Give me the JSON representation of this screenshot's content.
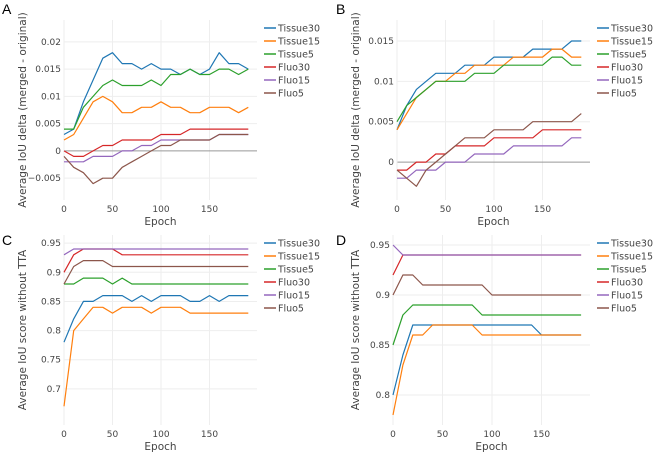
{
  "chart_data": [
    {
      "panel": "A",
      "type": "line",
      "xlabel": "Epoch",
      "ylabel": "Average IoU delta (merged - original)",
      "xlim": [
        0,
        199
      ],
      "ylim": [
        -0.009,
        0.024
      ],
      "xticks": [
        0,
        50,
        100,
        150
      ],
      "xtick_labels": [
        "0",
        "50",
        "100",
        "150"
      ],
      "yticks": [
        -0.005,
        0,
        0.005,
        0.01,
        0.015,
        0.02
      ],
      "ytick_labels": [
        "−0.005",
        "0",
        "0.005",
        "0.01",
        "0.015",
        "0.02"
      ],
      "zero_line": true,
      "grid": true,
      "legend": "top-right-outside",
      "x": [
        0,
        10,
        20,
        30,
        40,
        50,
        60,
        70,
        80,
        90,
        100,
        110,
        120,
        130,
        140,
        150,
        160,
        170,
        180,
        190
      ],
      "series": [
        {
          "name": "Tissue30",
          "color": "#1f77b4",
          "values": [
            0.003,
            0.004,
            0.009,
            0.013,
            0.017,
            0.018,
            0.016,
            0.016,
            0.015,
            0.016,
            0.015,
            0.015,
            0.014,
            0.015,
            0.014,
            0.015,
            0.018,
            0.016,
            0.016,
            0.015
          ]
        },
        {
          "name": "Tissue15",
          "color": "#ff7f0e",
          "values": [
            0.002,
            0.003,
            0.006,
            0.009,
            0.01,
            0.009,
            0.007,
            0.007,
            0.008,
            0.008,
            0.009,
            0.008,
            0.008,
            0.007,
            0.007,
            0.008,
            0.008,
            0.008,
            0.007,
            0.008
          ]
        },
        {
          "name": "Tissue5",
          "color": "#2ca02c",
          "values": [
            0.004,
            0.004,
            0.008,
            0.01,
            0.012,
            0.013,
            0.012,
            0.012,
            0.012,
            0.013,
            0.012,
            0.014,
            0.014,
            0.015,
            0.014,
            0.014,
            0.015,
            0.015,
            0.014,
            0.015
          ]
        },
        {
          "name": "Fluo30",
          "color": "#d62728",
          "values": [
            0.0,
            -0.001,
            -0.001,
            0.0,
            0.001,
            0.001,
            0.002,
            0.002,
            0.002,
            0.002,
            0.003,
            0.003,
            0.003,
            0.004,
            0.004,
            0.004,
            0.004,
            0.004,
            0.004,
            0.004
          ]
        },
        {
          "name": "Fluo15",
          "color": "#9467bd",
          "values": [
            -0.002,
            -0.002,
            -0.002,
            -0.001,
            -0.001,
            -0.001,
            0.0,
            0.0,
            0.001,
            0.001,
            0.002,
            0.002,
            0.002,
            0.002,
            0.002,
            0.002,
            0.003,
            0.003,
            0.003,
            0.003
          ]
        },
        {
          "name": "Fluo5",
          "color": "#8c564b",
          "values": [
            -0.001,
            -0.003,
            -0.004,
            -0.006,
            -0.005,
            -0.005,
            -0.003,
            -0.002,
            -0.001,
            0.0,
            0.001,
            0.001,
            0.002,
            0.002,
            0.002,
            0.002,
            0.003,
            0.003,
            0.003,
            0.003
          ]
        }
      ]
    },
    {
      "panel": "B",
      "type": "line",
      "xlabel": "Epoch",
      "ylabel": "Average IoU delta (merged - original)",
      "xlim": [
        0,
        199
      ],
      "ylim": [
        -0.0047,
        0.0176
      ],
      "xticks": [
        0,
        50,
        100,
        150
      ],
      "xtick_labels": [
        "0",
        "50",
        "100",
        "150"
      ],
      "yticks": [
        0,
        0.005,
        0.01,
        0.015
      ],
      "ytick_labels": [
        "0",
        "0.005",
        "0.01",
        "0.015"
      ],
      "zero_line": true,
      "grid": true,
      "legend": "top-right-outside",
      "x": [
        0,
        10,
        20,
        30,
        40,
        50,
        60,
        70,
        80,
        90,
        100,
        110,
        120,
        130,
        140,
        150,
        160,
        170,
        180,
        190
      ],
      "series": [
        {
          "name": "Tissue30",
          "color": "#1f77b4",
          "values": [
            0.004,
            0.007,
            0.009,
            0.01,
            0.011,
            0.011,
            0.011,
            0.012,
            0.012,
            0.012,
            0.013,
            0.013,
            0.013,
            0.013,
            0.014,
            0.014,
            0.014,
            0.014,
            0.015,
            0.015
          ]
        },
        {
          "name": "Tissue15",
          "color": "#ff7f0e",
          "values": [
            0.004,
            0.006,
            0.008,
            0.009,
            0.01,
            0.01,
            0.011,
            0.011,
            0.012,
            0.012,
            0.012,
            0.012,
            0.013,
            0.013,
            0.013,
            0.013,
            0.014,
            0.014,
            0.013,
            0.013
          ]
        },
        {
          "name": "Tissue5",
          "color": "#2ca02c",
          "values": [
            0.005,
            0.007,
            0.008,
            0.009,
            0.01,
            0.01,
            0.01,
            0.01,
            0.011,
            0.011,
            0.011,
            0.012,
            0.012,
            0.012,
            0.012,
            0.012,
            0.013,
            0.013,
            0.012,
            0.012
          ]
        },
        {
          "name": "Fluo30",
          "color": "#d62728",
          "values": [
            -0.001,
            -0.001,
            0.0,
            0.0,
            0.001,
            0.001,
            0.002,
            0.002,
            0.002,
            0.002,
            0.003,
            0.003,
            0.003,
            0.003,
            0.003,
            0.004,
            0.004,
            0.004,
            0.004,
            0.004
          ]
        },
        {
          "name": "Fluo15",
          "color": "#9467bd",
          "values": [
            -0.002,
            -0.002,
            -0.001,
            -0.001,
            -0.001,
            0.0,
            0.0,
            0.0,
            0.001,
            0.001,
            0.001,
            0.001,
            0.002,
            0.002,
            0.002,
            0.002,
            0.002,
            0.002,
            0.003,
            0.003
          ]
        },
        {
          "name": "Fluo5",
          "color": "#8c564b",
          "values": [
            -0.001,
            -0.002,
            -0.003,
            -0.001,
            0.0,
            0.001,
            0.002,
            0.003,
            0.003,
            0.003,
            0.004,
            0.004,
            0.004,
            0.004,
            0.005,
            0.005,
            0.005,
            0.005,
            0.005,
            0.006
          ]
        }
      ]
    },
    {
      "panel": "C",
      "type": "line",
      "xlabel": "Epoch",
      "ylabel": "Average IoU score without TTA",
      "xlim": [
        0,
        199
      ],
      "ylim": [
        0.638,
        0.964
      ],
      "xticks": [
        0,
        50,
        100,
        150
      ],
      "xtick_labels": [
        "0",
        "50",
        "100",
        "150"
      ],
      "yticks": [
        0.7,
        0.75,
        0.8,
        0.85,
        0.9,
        0.95
      ],
      "ytick_labels": [
        "0.7",
        "0.75",
        "0.8",
        "0.85",
        "0.9",
        "0.95"
      ],
      "zero_line": false,
      "grid": true,
      "legend": "top-right-outside",
      "x": [
        0,
        10,
        20,
        30,
        40,
        50,
        60,
        70,
        80,
        90,
        100,
        110,
        120,
        130,
        140,
        150,
        160,
        170,
        180,
        190
      ],
      "series": [
        {
          "name": "Tissue30",
          "color": "#1f77b4",
          "values": [
            0.78,
            0.82,
            0.85,
            0.85,
            0.86,
            0.86,
            0.86,
            0.85,
            0.86,
            0.85,
            0.86,
            0.86,
            0.86,
            0.85,
            0.85,
            0.86,
            0.85,
            0.86,
            0.86,
            0.86
          ]
        },
        {
          "name": "Tissue15",
          "color": "#ff7f0e",
          "values": [
            0.67,
            0.8,
            0.82,
            0.84,
            0.84,
            0.83,
            0.84,
            0.84,
            0.84,
            0.83,
            0.84,
            0.84,
            0.84,
            0.83,
            0.83,
            0.83,
            0.83,
            0.83,
            0.83,
            0.83
          ]
        },
        {
          "name": "Tissue5",
          "color": "#2ca02c",
          "values": [
            0.88,
            0.88,
            0.89,
            0.89,
            0.89,
            0.88,
            0.89,
            0.88,
            0.88,
            0.88,
            0.88,
            0.88,
            0.88,
            0.88,
            0.88,
            0.88,
            0.88,
            0.88,
            0.88,
            0.88
          ]
        },
        {
          "name": "Fluo30",
          "color": "#d62728",
          "values": [
            0.9,
            0.93,
            0.94,
            0.94,
            0.94,
            0.94,
            0.93,
            0.93,
            0.93,
            0.93,
            0.93,
            0.93,
            0.93,
            0.93,
            0.93,
            0.93,
            0.93,
            0.93,
            0.93,
            0.93
          ]
        },
        {
          "name": "Fluo15",
          "color": "#9467bd",
          "values": [
            0.93,
            0.94,
            0.94,
            0.94,
            0.94,
            0.94,
            0.94,
            0.94,
            0.94,
            0.94,
            0.94,
            0.94,
            0.94,
            0.94,
            0.94,
            0.94,
            0.94,
            0.94,
            0.94,
            0.94
          ]
        },
        {
          "name": "Fluo5",
          "color": "#8c564b",
          "values": [
            0.88,
            0.91,
            0.92,
            0.92,
            0.92,
            0.91,
            0.91,
            0.91,
            0.91,
            0.91,
            0.91,
            0.91,
            0.91,
            0.91,
            0.91,
            0.91,
            0.91,
            0.91,
            0.91,
            0.91
          ]
        }
      ]
    },
    {
      "panel": "D",
      "type": "line",
      "xlabel": "Epoch",
      "ylabel": "Average IoU score without TTA",
      "xlim": [
        0,
        199
      ],
      "ylim": [
        0.77,
        0.96
      ],
      "xticks": [
        0,
        50,
        100,
        150
      ],
      "xtick_labels": [
        "0",
        "50",
        "100",
        "150"
      ],
      "yticks": [
        0.8,
        0.85,
        0.9,
        0.95
      ],
      "ytick_labels": [
        "0.8",
        "0.85",
        "0.9",
        "0.95"
      ],
      "zero_line": false,
      "grid": true,
      "legend": "top-right-outside",
      "x": [
        0,
        10,
        20,
        30,
        40,
        50,
        60,
        70,
        80,
        90,
        100,
        110,
        120,
        130,
        140,
        150,
        160,
        170,
        180,
        190
      ],
      "series": [
        {
          "name": "Tissue30",
          "color": "#1f77b4",
          "values": [
            0.8,
            0.84,
            0.87,
            0.87,
            0.87,
            0.87,
            0.87,
            0.87,
            0.87,
            0.87,
            0.87,
            0.87,
            0.87,
            0.87,
            0.87,
            0.86,
            0.86,
            0.86,
            0.86,
            0.86
          ]
        },
        {
          "name": "Tissue15",
          "color": "#ff7f0e",
          "values": [
            0.78,
            0.83,
            0.86,
            0.86,
            0.87,
            0.87,
            0.87,
            0.87,
            0.87,
            0.86,
            0.86,
            0.86,
            0.86,
            0.86,
            0.86,
            0.86,
            0.86,
            0.86,
            0.86,
            0.86
          ]
        },
        {
          "name": "Tissue5",
          "color": "#2ca02c",
          "values": [
            0.85,
            0.88,
            0.89,
            0.89,
            0.89,
            0.89,
            0.89,
            0.89,
            0.89,
            0.88,
            0.88,
            0.88,
            0.88,
            0.88,
            0.88,
            0.88,
            0.88,
            0.88,
            0.88,
            0.88
          ]
        },
        {
          "name": "Fluo30",
          "color": "#d62728",
          "values": [
            0.92,
            0.94,
            0.94,
            0.94,
            0.94,
            0.94,
            0.94,
            0.94,
            0.94,
            0.94,
            0.94,
            0.94,
            0.94,
            0.94,
            0.94,
            0.94,
            0.94,
            0.94,
            0.94,
            0.94
          ]
        },
        {
          "name": "Fluo15",
          "color": "#9467bd",
          "values": [
            0.95,
            0.94,
            0.94,
            0.94,
            0.94,
            0.94,
            0.94,
            0.94,
            0.94,
            0.94,
            0.94,
            0.94,
            0.94,
            0.94,
            0.94,
            0.94,
            0.94,
            0.94,
            0.94,
            0.94
          ]
        },
        {
          "name": "Fluo5",
          "color": "#8c564b",
          "values": [
            0.9,
            0.92,
            0.92,
            0.91,
            0.91,
            0.91,
            0.91,
            0.91,
            0.91,
            0.91,
            0.9,
            0.9,
            0.9,
            0.9,
            0.9,
            0.9,
            0.9,
            0.9,
            0.9,
            0.9
          ]
        }
      ]
    }
  ]
}
